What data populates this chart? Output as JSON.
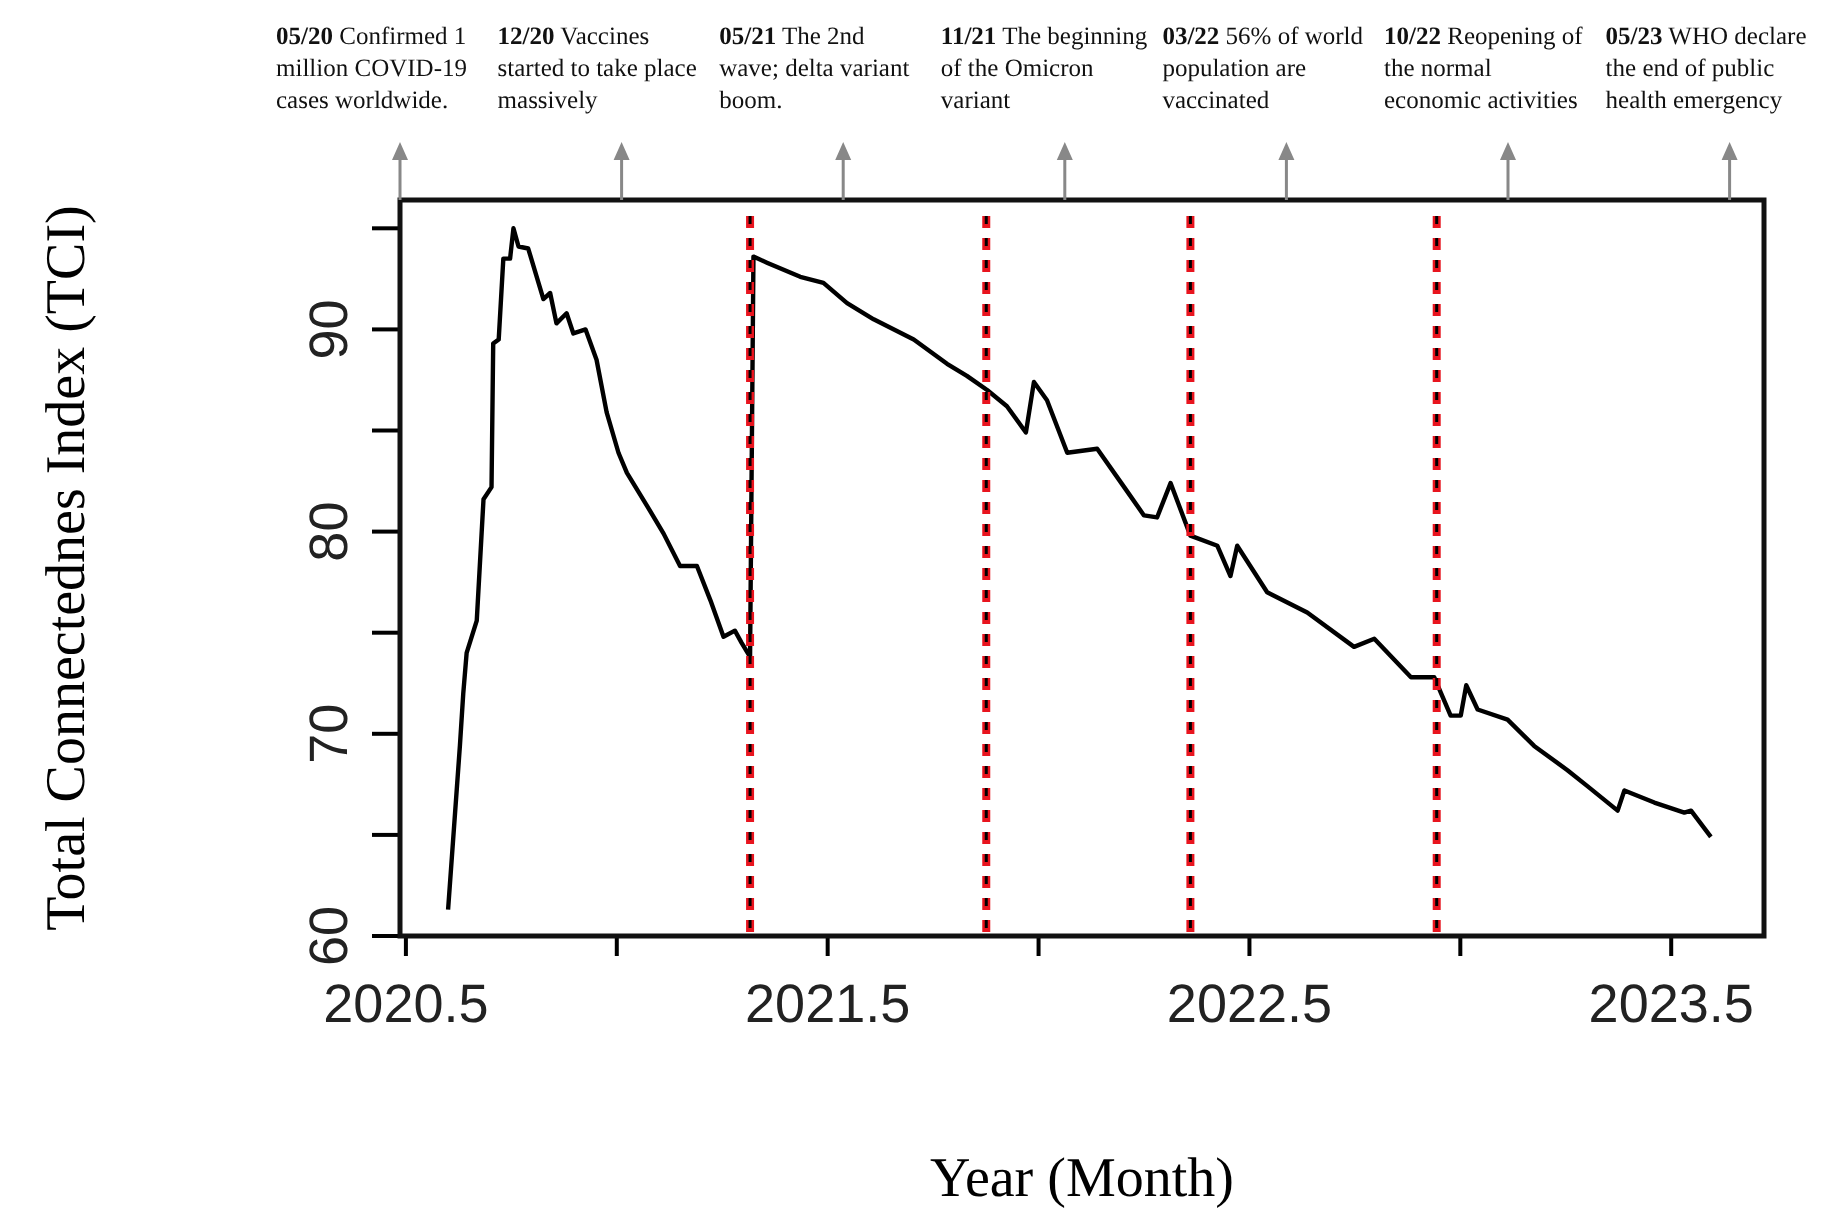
{
  "chart_data": {
    "type": "line",
    "xlabel": "Year (Month)",
    "ylabel": "Total Connectednes Index (TCI)",
    "x": [
      2020.6,
      2020.628,
      2020.636,
      2020.644,
      2020.668,
      2020.684,
      2020.703,
      2020.707,
      2020.72,
      2020.731,
      2020.747,
      2020.755,
      2020.767,
      2020.79,
      2020.826,
      2020.842,
      2020.857,
      2020.881,
      2020.897,
      2020.926,
      2020.952,
      2020.976,
      2021.004,
      2021.024,
      2021.071,
      2021.111,
      2021.15,
      2021.19,
      2021.222,
      2021.253,
      2021.28,
      2021.296,
      2021.316,
      2021.324,
      2021.356,
      2021.435,
      2021.49,
      2021.546,
      2021.609,
      2021.704,
      2021.783,
      2021.83,
      2021.878,
      2021.925,
      2021.97,
      2021.989,
      2022.02,
      2022.068,
      2022.139,
      2022.203,
      2022.25,
      2022.281,
      2022.313,
      2022.36,
      2022.424,
      2022.455,
      2022.471,
      2022.542,
      2022.637,
      2022.748,
      2022.796,
      2022.883,
      2022.938,
      2022.977,
      2023.001,
      2023.014,
      2023.041,
      2023.112,
      2023.175,
      2023.254,
      2023.302,
      2023.373,
      2023.389,
      2023.46,
      2023.531,
      2023.547,
      2023.594
    ],
    "series": [
      {
        "color": "#000000",
        "values": [
          61.3,
          69.4,
          72.0,
          74.0,
          75.6,
          81.6,
          82.2,
          89.3,
          89.5,
          93.5,
          93.5,
          95.0,
          94.1,
          94.0,
          91.5,
          91.8,
          90.3,
          90.8,
          89.8,
          90.0,
          88.5,
          85.9,
          83.9,
          82.9,
          81.3,
          79.9,
          78.3,
          78.3,
          76.6,
          74.8,
          75.1,
          74.5,
          73.8,
          93.6,
          93.3,
          92.6,
          92.3,
          91.3,
          90.5,
          89.5,
          88.3,
          87.7,
          87.0,
          86.2,
          84.9,
          87.4,
          86.5,
          83.9,
          84.1,
          82.2,
          80.8,
          80.7,
          82.4,
          79.8,
          79.3,
          77.8,
          79.3,
          77.0,
          76.0,
          74.3,
          74.7,
          72.8,
          72.8,
          70.9,
          70.9,
          72.4,
          71.2,
          70.7,
          69.4,
          68.2,
          67.4,
          66.2,
          67.2,
          66.6,
          66.1,
          66.2,
          64.9
        ]
      }
    ],
    "xlim": [
      2020.486,
      2023.72
    ],
    "ylim": [
      60,
      96.4
    ],
    "xticks": [
      2020.5,
      {
        "value": 2021,
        "label": null
      },
      2021.5,
      {
        "value": 2022,
        "label": null
      },
      2022.5,
      {
        "value": 2023,
        "label": null
      },
      2023.5
    ],
    "yticks": [
      60,
      {
        "value": 65,
        "label": null
      },
      70,
      {
        "value": 75,
        "label": null
      },
      80,
      {
        "value": 85,
        "label": null
      },
      90,
      {
        "value": 95,
        "label": null
      }
    ],
    "grid": false,
    "marker": "none",
    "line_style": "solid",
    "ref_lines": [
      {
        "axis": "x",
        "value": 2021.316,
        "color": "#e8141e",
        "line_style": "dashed"
      },
      {
        "axis": "x",
        "value": 2021.876,
        "color": "#e8141e",
        "line_style": "dashed"
      },
      {
        "axis": "x",
        "value": 2022.36,
        "color": "#e8141e",
        "line_style": "dashed"
      },
      {
        "axis": "x",
        "value": 2022.944,
        "color": "#e8141e",
        "line_style": "dashed"
      }
    ],
    "annotations": [
      "05/20 Confirmed 1 million COVID-19 cases worldwide.",
      "12/20 Vaccines started to take place massively",
      "05/21 The 2nd wave; delta variant boom.",
      "11/21 The beginning of the Omicron variant",
      "03/22 56% of world population are vaccinated",
      "10/22 Reopening of the normal economic activities",
      "05/23 WHO declare the end of public health emergency"
    ]
  }
}
